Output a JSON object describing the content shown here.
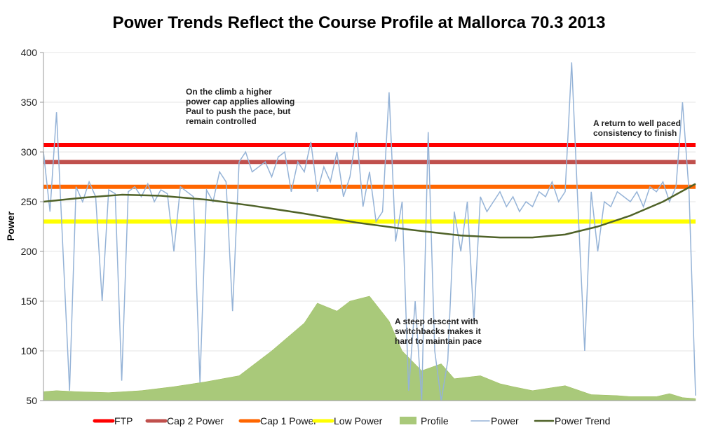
{
  "chart_data": {
    "type": "line",
    "title": "Power Trends Reflect the Course Profile at Mallorca 70.3 2013",
    "xlabel": "",
    "ylabel": "Power",
    "ylim": [
      50,
      400
    ],
    "yticks": [
      50,
      100,
      150,
      200,
      250,
      300,
      350,
      400
    ],
    "grid": true,
    "legend_position": "bottom",
    "x_range": [
      0,
      100
    ],
    "reference_lines": [
      {
        "name": "FTP",
        "value": 307,
        "color": "#ff0000"
      },
      {
        "name": "Cap 2 Power",
        "value": 290,
        "color": "#c0504d"
      },
      {
        "name": "Cap 1 Power",
        "value": 265,
        "color": "#ff6600"
      },
      {
        "name": "Low Power",
        "value": 230,
        "color": "#ffff00"
      }
    ],
    "profile": {
      "name": "Profile",
      "color": "#a9c97a",
      "x": [
        0,
        2,
        5,
        10,
        15,
        20,
        25,
        30,
        35,
        40,
        42,
        45,
        47,
        50,
        53,
        55,
        58,
        61,
        63,
        67,
        70,
        72,
        75,
        80,
        84,
        88,
        90,
        94,
        96,
        98,
        100
      ],
      "values": [
        59,
        60,
        59,
        58,
        60,
        64,
        69,
        75,
        100,
        128,
        148,
        140,
        150,
        155,
        130,
        100,
        80,
        87,
        72,
        75,
        67,
        64,
        60,
        65,
        56,
        55,
        54,
        54,
        57,
        53,
        52
      ]
    },
    "power": {
      "name": "Power",
      "color": "#95b3d7",
      "values": [
        300,
        240,
        340,
        200,
        60,
        265,
        250,
        270,
        255,
        150,
        262,
        258,
        70,
        260,
        265,
        255,
        268,
        250,
        262,
        258,
        200,
        265,
        260,
        255,
        68,
        262,
        250,
        280,
        270,
        140,
        290,
        300,
        280,
        285,
        290,
        275,
        295,
        300,
        260,
        290,
        280,
        310,
        260,
        285,
        270,
        300,
        255,
        275,
        320,
        245,
        280,
        230,
        240,
        360,
        210,
        250,
        60,
        150,
        50,
        320,
        100,
        50,
        90,
        240,
        200,
        250,
        130,
        255,
        240,
        250,
        260,
        245,
        255,
        240,
        250,
        245,
        260,
        255,
        270,
        250,
        260,
        390,
        240,
        100,
        260,
        200,
        250,
        245,
        260,
        255,
        250,
        260,
        245,
        265,
        260,
        270,
        250,
        265,
        350,
        260,
        55
      ]
    },
    "trend": {
      "name": "Power Trend",
      "color": "#4f6228",
      "x": [
        0,
        6,
        12,
        18,
        25,
        32,
        40,
        48,
        56,
        64,
        70,
        75,
        80,
        85,
        90,
        95,
        100
      ],
      "values": [
        250,
        254,
        257,
        256,
        252,
        246,
        238,
        229,
        222,
        216,
        214,
        214,
        217,
        225,
        236,
        250,
        268
      ]
    },
    "legend": [
      "FTP",
      "Cap 2 Power",
      "Cap 1 Power",
      "Low Power",
      "Profile",
      "Power",
      "Power Trend"
    ],
    "annotations": [
      {
        "lines": [
          "On the climb a higher",
          "power cap applies allowing",
          "Paul to push the pace, but",
          "remain controlled"
        ]
      },
      {
        "lines": [
          "A return to well paced",
          "consistency to finish"
        ]
      },
      {
        "lines": [
          "A steep descent with",
          "switchbacks makes it",
          "hard to maintain pace"
        ]
      }
    ]
  }
}
